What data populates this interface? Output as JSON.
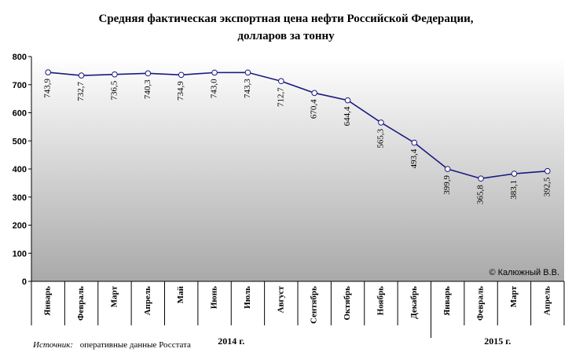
{
  "chart_data": {
    "type": "line",
    "title_line1": "Средняя фактическая экспортная цена нефти Российской Федерации,",
    "title_line2": "долларов за тонну",
    "categories": [
      "Январь",
      "Февраль",
      "Март",
      "Апрель",
      "Май",
      "Июнь",
      "Июль",
      "Август",
      "Сентябрь",
      "Октябрь",
      "Ноябрь",
      "Декабрь",
      "Январь",
      "Февраль",
      "Март",
      "Апрель"
    ],
    "values": [
      743.9,
      732.7,
      736.5,
      740.3,
      734.9,
      743.0,
      743.3,
      712.7,
      670.4,
      644.4,
      565.3,
      493.4,
      399.9,
      365.8,
      383.1,
      392.5
    ],
    "value_labels": [
      "743,9",
      "732,7",
      "736,5",
      "740,3",
      "734,9",
      "743,0",
      "743,3",
      "712,7",
      "670,4",
      "644,4",
      "565,3",
      "493,4",
      "399,9",
      "365,8",
      "383,1",
      "392,5"
    ],
    "ylim": [
      0,
      800
    ],
    "yticks": [
      0,
      100,
      200,
      300,
      400,
      500,
      600,
      700,
      800
    ],
    "year_groups": [
      {
        "label": "2014 г.",
        "count": 12
      },
      {
        "label": "2015 г.",
        "count": 4
      }
    ],
    "grid": false,
    "colors": {
      "line": "#1a1a80",
      "marker_fill": "#ffffff",
      "plot_bg_top": "#ffffff",
      "plot_bg_bottom": "#a9a9a9"
    }
  },
  "copyright": "© Калюжный В.В.",
  "source": {
    "label": "Источник:",
    "text": "оперативные данные Росстата"
  }
}
